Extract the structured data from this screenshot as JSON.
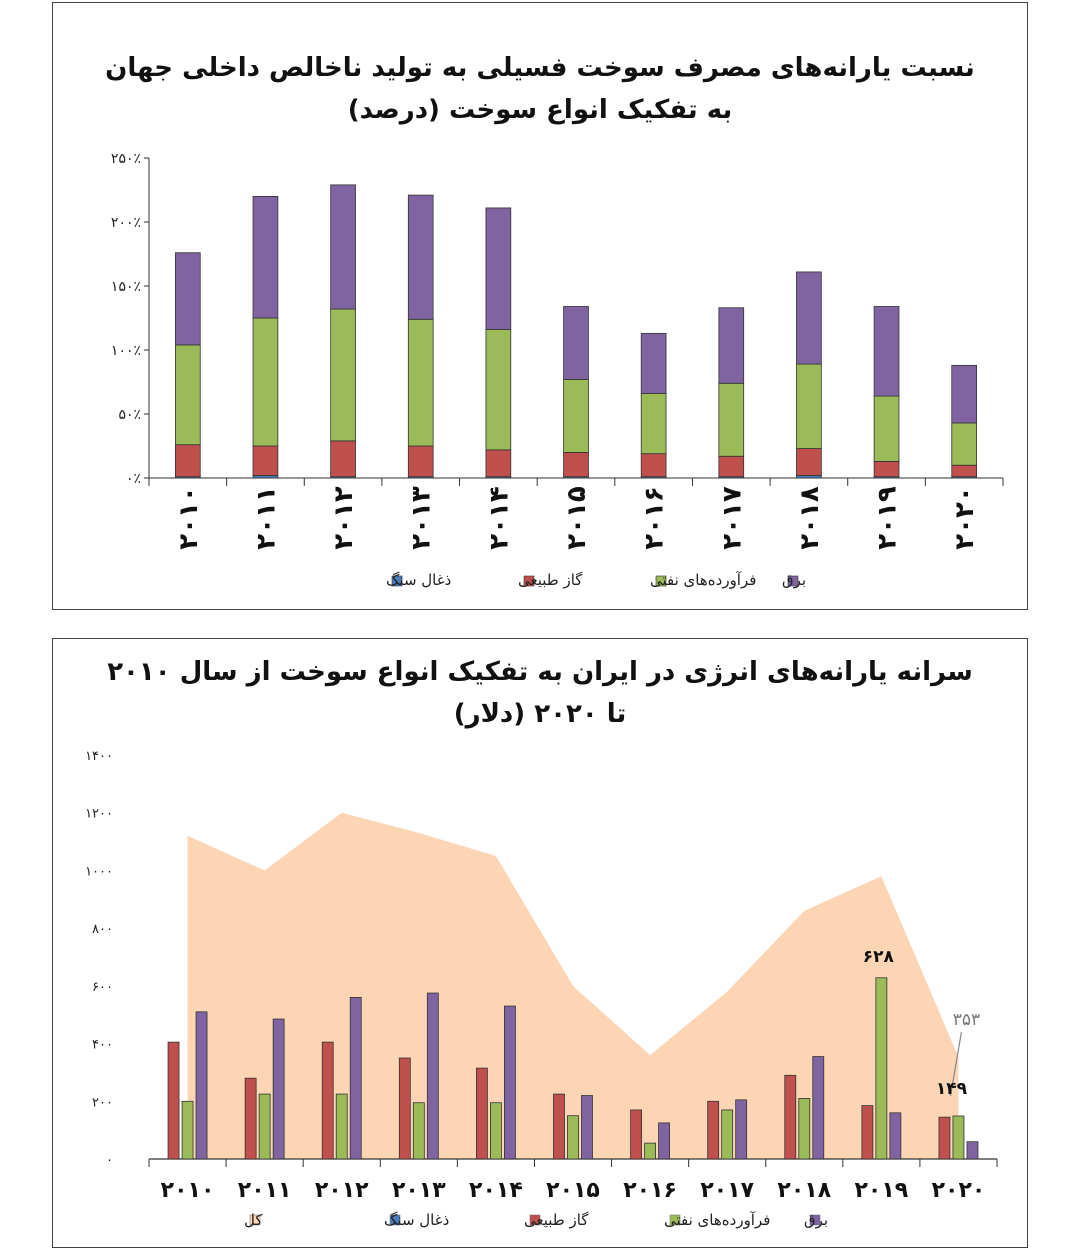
{
  "chart_data": [
    {
      "type": "bar",
      "stacked": true,
      "title": "نسبت یارانه‌های مصرف سوخت فسیلی به تولید ناخالص داخلی جهان به تفکیک انواع سوخت (درصد)",
      "categories": [
        "۲۰۱۰",
        "۲۰۱۱",
        "۲۰۱۲",
        "۲۰۱۳",
        "۲۰۱۴",
        "۲۰۱۵",
        "۲۰۱۶",
        "۲۰۱۷",
        "۲۰۱۸",
        "۲۰۱۹",
        "۲۰۲۰"
      ],
      "y_ticks": [
        "۰٪",
        "۵۰٪",
        "۱۰۰٪",
        "۱۵۰٪",
        "۲۰۰٪",
        "۲۵۰٪"
      ],
      "ylim": [
        0,
        250
      ],
      "series": [
        {
          "name": "ذغال سنگ",
          "color": "#4a7ebb",
          "values": [
            1,
            2,
            1,
            1,
            1,
            1,
            1,
            1,
            2,
            1,
            1
          ]
        },
        {
          "name": "گاز طبیعی",
          "color": "#c0504d",
          "values": [
            25,
            23,
            28,
            24,
            21,
            19,
            18,
            16,
            21,
            12,
            9
          ]
        },
        {
          "name": "فرآورده‌های نفتی",
          "color": "#9bbb59",
          "values": [
            78,
            100,
            103,
            99,
            94,
            57,
            47,
            57,
            66,
            51,
            33
          ]
        },
        {
          "name": "برق",
          "color": "#8064a2",
          "values": [
            72,
            95,
            97,
            97,
            95,
            57,
            47,
            59,
            72,
            70,
            45
          ]
        }
      ],
      "legend_position": "bottom",
      "grid": false
    },
    {
      "type": "bar",
      "title": "سرانه یارانه‌های انرژی در ایران به تفکیک انواع سوخت از سال ۲۰۱۰ تا ۲۰۲۰ (دلار)",
      "categories": [
        "۲۰۱۰",
        "۲۰۱۱",
        "۲۰۱۲",
        "۲۰۱۳",
        "۲۰۱۴",
        "۲۰۱۵",
        "۲۰۱۶",
        "۲۰۱۷",
        "۲۰۱۸",
        "۲۰۱۹",
        "۲۰۲۰"
      ],
      "y_ticks": [
        "۰",
        "۲۰۰",
        "۴۰۰",
        "۶۰۰",
        "۸۰۰",
        "۱۰۰۰",
        "۱۲۰۰",
        "۱۴۰۰"
      ],
      "ylim": [
        0,
        1400
      ],
      "area_series": {
        "name": "کل",
        "color": "#fcd5b5",
        "values": [
          1120,
          1000,
          1200,
          1130,
          1050,
          600,
          360,
          580,
          860,
          980,
          353
        ]
      },
      "series": [
        {
          "name": "ذغال سنگ",
          "color": "#4a7ebb",
          "values": [
            0,
            0,
            0,
            0,
            0,
            0,
            0,
            0,
            0,
            0,
            0
          ]
        },
        {
          "name": "گاز طبیعی",
          "color": "#c0504d",
          "values": [
            405,
            280,
            405,
            350,
            315,
            225,
            170,
            200,
            290,
            185,
            145
          ]
        },
        {
          "name": "فرآورده‌های نفتی",
          "color": "#9bbb59",
          "values": [
            200,
            225,
            225,
            195,
            195,
            150,
            55,
            170,
            210,
            628,
            149
          ]
        },
        {
          "name": "برق",
          "color": "#8064a2",
          "values": [
            510,
            485,
            560,
            575,
            530,
            220,
            125,
            205,
            355,
            160,
            60
          ]
        }
      ],
      "annotations": [
        {
          "text": "۶۲۸",
          "category_index": 9
        },
        {
          "text": "۳۵۳",
          "category_index": 10
        },
        {
          "text": "۱۴۹",
          "category_index": 10
        }
      ],
      "legend_position": "bottom",
      "grid": false
    }
  ]
}
